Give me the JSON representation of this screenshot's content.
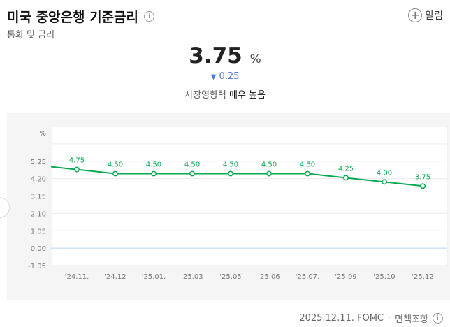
{
  "header": {
    "title": "미국 중앙은행 기준금리",
    "subtitle": "통화 및 금리",
    "alarm_label": "알림",
    "icons": [
      "info-icon",
      "plus-icon"
    ]
  },
  "summary": {
    "rate": "3.75",
    "unit": "%",
    "change": "0.25",
    "change_direction": "down",
    "impact_label": "시장영향력",
    "impact_value": "매우 높음"
  },
  "footer": {
    "date": "2025.12.11. FOMC",
    "separator": "·",
    "disclaimer": "면책조항"
  },
  "colors": {
    "line": "#03a94e",
    "down": "#4a78d8",
    "zero_line": "#b8d0f0"
  },
  "chart_data": {
    "type": "line",
    "ylabel": "%",
    "ylim": [
      -1.05,
      7.35
    ],
    "yticks": [
      "5.25",
      "4.20",
      "3.15",
      "2.10",
      "1.05",
      "0.00",
      "-1.05"
    ],
    "ytick_values": [
      5.25,
      4.2,
      3.15,
      2.1,
      1.05,
      0,
      -1.05
    ],
    "grid": true,
    "categories": [
      "'24.11.",
      "'24.12",
      "'25.01.",
      "'25.03",
      "'25.05",
      "'25.06",
      "'25.07.",
      "'25.09",
      "'25.10",
      "'25.12"
    ],
    "values": [
      4.75,
      4.5,
      4.5,
      4.5,
      4.5,
      4.5,
      4.5,
      4.25,
      4.0,
      3.75
    ],
    "labels": [
      "4.75",
      "4.50",
      "4.50",
      "4.50",
      "4.50",
      "4.50",
      "4.50",
      "4.25",
      "4.00",
      "3.75"
    ]
  }
}
